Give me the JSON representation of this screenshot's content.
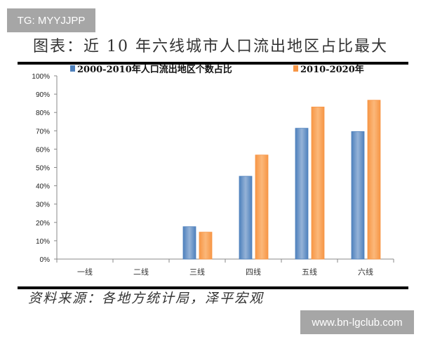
{
  "watermark_top": "TG: MYYJJPP",
  "watermark_bottom": "www.bn-lgclub.com",
  "title": "图表：近 10 年六线城市人口流出地区占比最大",
  "source": "资料来源：各地方统计局，泽平宏观",
  "chart_data": {
    "type": "bar",
    "title": "图表：近 10 年六线城市人口流出地区占比最大",
    "categories": [
      "一线",
      "二线",
      "三线",
      "四线",
      "五线",
      "六线"
    ],
    "series": [
      {
        "name": "2000-2010年人口流出地区个数占比",
        "color": "#4f81bd",
        "values": [
          0,
          0,
          17.7,
          45.2,
          71.4,
          69.6
        ]
      },
      {
        "name": "2010-2020年",
        "color": "#f79646",
        "values": [
          0,
          0,
          14.7,
          56.8,
          83.0,
          86.7
        ]
      }
    ],
    "yticks": [
      "0%",
      "10%",
      "20%",
      "30%",
      "40%",
      "50%",
      "60%",
      "70%",
      "80%",
      "90%",
      "100%"
    ],
    "ylim": [
      0,
      100
    ],
    "grid": false,
    "legend": "top"
  }
}
